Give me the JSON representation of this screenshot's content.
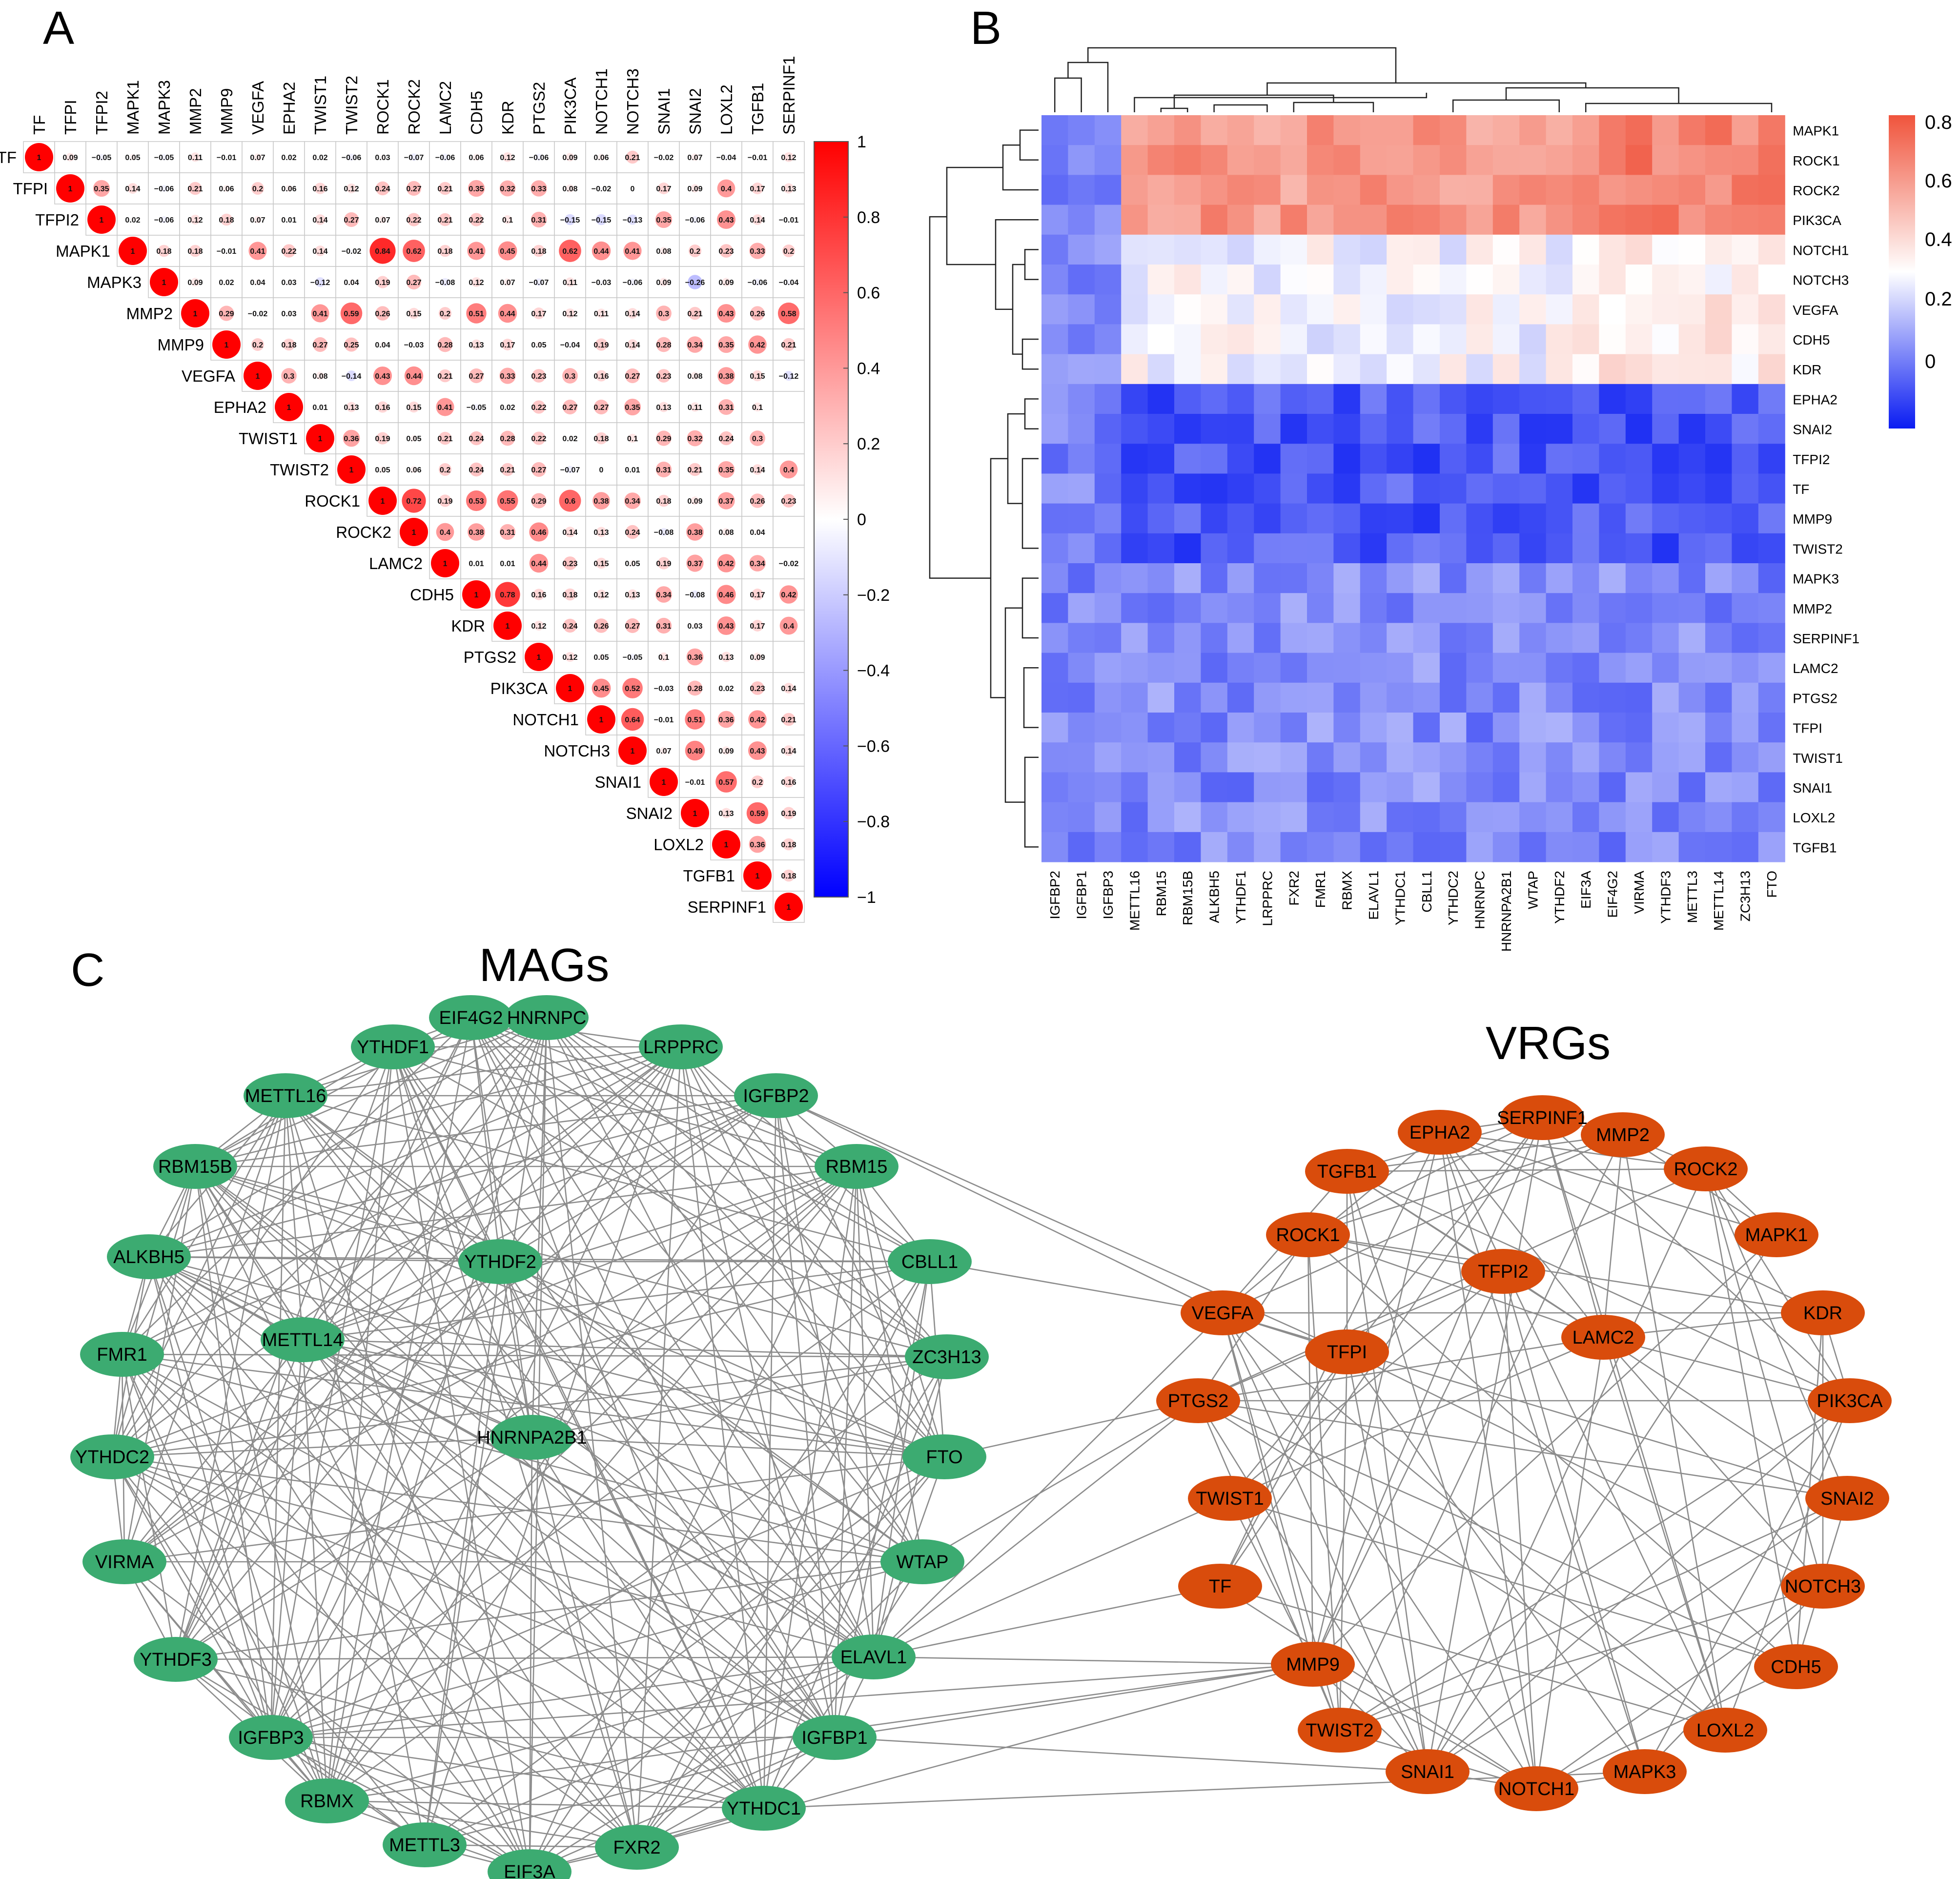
{
  "panels": {
    "a": "A",
    "b": "B",
    "c": "C"
  },
  "panel_a": {
    "genes": [
      "TF",
      "TFPI",
      "TFPI2",
      "MAPK1",
      "MAPK3",
      "MMP2",
      "MMP9",
      "VEGFA",
      "EPHA2",
      "TWIST1",
      "TWIST2",
      "ROCK1",
      "ROCK2",
      "LAMC2",
      "CDH5",
      "KDR",
      "PTGS2",
      "PIK3CA",
      "NOTCH1",
      "NOTCH3",
      "SNAI1",
      "SNAI2",
      "LOXL2",
      "TGFB1",
      "SERPINF1"
    ],
    "colorbar_ticks": [
      "1",
      "0.8",
      "0.6",
      "0.4",
      "0.2",
      "0",
      "−0.2",
      "−0.4",
      "−0.6",
      "−0.8",
      "−1"
    ],
    "colors": {
      "high": "#ff0000",
      "mid": "#ffffff",
      "low": "#0000ff"
    },
    "matrix": [
      [
        "1",
        "0.09",
        "−0.05",
        "0.05",
        "−0.05",
        "0.11",
        "−0.01",
        "0.07",
        "0.02",
        "0.02",
        "−0.06",
        "0.03",
        "−0.07",
        "−0.06",
        "0.06",
        "0.12",
        "−0.06",
        "0.09",
        "0.06",
        "0.21",
        "−0.02",
        "0.07",
        "−0.04",
        "−0.01",
        "0.12"
      ],
      [
        "1",
        "0.35",
        "0.14",
        "−0.06",
        "0.21",
        "0.06",
        "0.2",
        "0.06",
        "0.16",
        "0.12",
        "0.24",
        "0.27",
        "0.21",
        "0.35",
        "0.32",
        "0.33",
        "0.08",
        "−0.02",
        "0",
        "0.17",
        "0.09",
        "0.4",
        "0.17",
        "0.13"
      ],
      [
        "1",
        "0.02",
        "−0.06",
        "0.12",
        "0.18",
        "0.07",
        "0.01",
        "0.14",
        "0.27",
        "0.07",
        "0.22",
        "0.21",
        "0.22",
        "0.1",
        "0.31",
        "−0.15",
        "−0.15",
        "−0.13",
        "0.35",
        "−0.06",
        "0.43",
        "0.14",
        "−0.01"
      ],
      [
        "1",
        "0.18",
        "0.18",
        "−0.01",
        "0.41",
        "0.22",
        "0.14",
        "−0.02",
        "0.84",
        "0.62",
        "0.18",
        "0.41",
        "0.45",
        "0.18",
        "0.62",
        "0.44",
        "0.41",
        "0.08",
        "0.2",
        "0.23",
        "0.33",
        "0.2"
      ],
      [
        "1",
        "0.09",
        "0.02",
        "0.04",
        "0.03",
        "−0.12",
        "0.04",
        "0.19",
        "0.27",
        "−0.08",
        "0.12",
        "0.07",
        "−0.07",
        "0.11",
        "−0.03",
        "−0.06",
        "0.09",
        "−0.26",
        "0.09",
        "−0.06",
        "−0.04"
      ],
      [
        "1",
        "0.29",
        "−0.02",
        "0.03",
        "0.41",
        "0.59",
        "0.26",
        "0.15",
        "0.2",
        "0.51",
        "0.44",
        "0.17",
        "0.12",
        "0.11",
        "0.14",
        "0.3",
        "0.21",
        "0.43",
        "0.26",
        "0.58"
      ],
      [
        "1",
        "0.2",
        "0.18",
        "0.27",
        "0.25",
        "0.04",
        "−0.03",
        "0.28",
        "0.13",
        "0.17",
        "0.05",
        "−0.04",
        "0.19",
        "0.14",
        "0.28",
        "0.34",
        "0.35",
        "0.42",
        "0.21"
      ],
      [
        "1",
        "0.3",
        "0.08",
        "−0.14",
        "0.43",
        "0.44",
        "0.21",
        "0.27",
        "0.33",
        "0.23",
        "0.3",
        "0.16",
        "0.27",
        "0.23",
        "0.08",
        "0.38",
        "0.15",
        "−0.12"
      ],
      [
        "1",
        "0.01",
        "0.13",
        "0.16",
        "0.15",
        "0.41",
        "−0.05",
        "0.02",
        "0.22",
        "0.27",
        "0.27",
        "0.35",
        "0.13",
        "0.11",
        "0.31",
        "0.1"
      ],
      [
        "1",
        "0.36",
        "0.19",
        "0.05",
        "0.21",
        "0.24",
        "0.28",
        "0.22",
        "0.02",
        "0.18",
        "0.1",
        "0.29",
        "0.32",
        "0.24",
        "0.3"
      ],
      [
        "1",
        "0.05",
        "0.06",
        "0.2",
        "0.24",
        "0.21",
        "0.27",
        "−0.07",
        "0",
        "0.01",
        "0.31",
        "0.21",
        "0.35",
        "0.14",
        "0.4"
      ],
      [
        "1",
        "0.72",
        "0.19",
        "0.53",
        "0.55",
        "0.29",
        "0.6",
        "0.38",
        "0.34",
        "0.18",
        "0.09",
        "0.37",
        "0.26",
        "0.23"
      ],
      [
        "1",
        "0.4",
        "0.38",
        "0.31",
        "0.46",
        "0.14",
        "0.13",
        "0.24",
        "−0.08",
        "0.38",
        "0.08",
        "0.04"
      ],
      [
        "1",
        "0.01",
        "0.01",
        "0.44",
        "0.23",
        "0.15",
        "0.05",
        "0.19",
        "0.37",
        "0.42",
        "0.34",
        "−0.02"
      ],
      [
        "1",
        "0.78",
        "0.16",
        "0.18",
        "0.12",
        "0.13",
        "0.34",
        "−0.08",
        "0.46",
        "0.17",
        "0.42"
      ],
      [
        "1",
        "0.12",
        "0.24",
        "0.26",
        "0.27",
        "0.31",
        "0.03",
        "0.43",
        "0.17",
        "0.4"
      ],
      [
        "1",
        "0.12",
        "0.05",
        "−0.05",
        "0.1",
        "0.36",
        "0.13",
        "0.09"
      ],
      [
        "1",
        "0.45",
        "0.52",
        "−0.03",
        "0.28",
        "0.02",
        "0.23",
        "0.14"
      ],
      [
        "1",
        "0.64",
        "−0.01",
        "0.51",
        "0.36",
        "0.42",
        "0.21"
      ],
      [
        "1",
        "0.07",
        "0.49",
        "0.09",
        "0.43",
        "0.14"
      ],
      [
        "1",
        "−0.01",
        "0.57",
        "0.2",
        "0.16"
      ],
      [
        "1",
        "0.13",
        "0.59",
        "0.19"
      ],
      [
        "1",
        "0.36",
        "0.18"
      ],
      [
        "1",
        "0.18"
      ],
      [
        "1"
      ]
    ]
  },
  "panel_b": {
    "rows": [
      "MAPK1",
      "ROCK1",
      "ROCK2",
      "PIK3CA",
      "NOTCH1",
      "NOTCH3",
      "VEGFA",
      "CDH5",
      "KDR",
      "EPHA2",
      "SNAI2",
      "TFPI2",
      "TF",
      "MMP9",
      "TWIST2",
      "MAPK3",
      "MMP2",
      "SERPINF1",
      "LAMC2",
      "PTGS2",
      "TFPI",
      "TWIST1",
      "SNAI1",
      "LOXL2",
      "TGFB1"
    ],
    "cols": [
      "IGFBP2",
      "IGFBP1",
      "IGFBP3",
      "METTL16",
      "RBM15",
      "RBM15B",
      "ALKBH5",
      "YTHDF1",
      "LRPPRC",
      "FXR2",
      "FMR1",
      "RBMX",
      "ELAVL1",
      "YTHDC1",
      "CBLL1",
      "YTHDC2",
      "HNRNPC",
      "HNRNPA2B1",
      "WTAP",
      "YTHDF2",
      "EIF3A",
      "EIF4G2",
      "VIRMA",
      "YTHDF3",
      "METTL3",
      "METTL14",
      "ZC3H13",
      "FTO"
    ],
    "colorbar_ticks": [
      "0.8",
      "0.6",
      "0.4",
      "0.2",
      "0"
    ],
    "colors": {
      "high": "#f0543c",
      "mid": "#ffffff",
      "low": "#0a1cf2"
    }
  },
  "panel_c": {
    "group1_title": "MAGs",
    "group2_title": "VRGs",
    "group1_color": "#3cab71",
    "group2_color": "#d94c0c",
    "edge_color": "#8c8c8c",
    "mags": [
      "EIF4G2",
      "HNRNPC",
      "YTHDF1",
      "LRPPRC",
      "METTL16",
      "IGFBP2",
      "RBM15B",
      "RBM15",
      "ALKBH5",
      "YTHDF2",
      "CBLL1",
      "FMR1",
      "METTL14",
      "ZC3H13",
      "HNRNPA2B1",
      "YTHDC2",
      "FTO",
      "VIRMA",
      "WTAP",
      "YTHDF3",
      "ELAVL1",
      "IGFBP3",
      "IGFBP1",
      "RBMX",
      "YTHDC1",
      "METTL3",
      "FXR2",
      "EIF3A"
    ],
    "vrgs": [
      "SERPINF1",
      "EPHA2",
      "MMP2",
      "TGFB1",
      "ROCK2",
      "ROCK1",
      "MAPK1",
      "TFPI2",
      "VEGFA",
      "LAMC2",
      "KDR",
      "TFPI",
      "PTGS2",
      "PIK3CA",
      "TWIST1",
      "SNAI2",
      "TF",
      "NOTCH3",
      "MMP9",
      "CDH5",
      "TWIST2",
      "LOXL2",
      "SNAI1",
      "MAPK3",
      "NOTCH1"
    ]
  }
}
